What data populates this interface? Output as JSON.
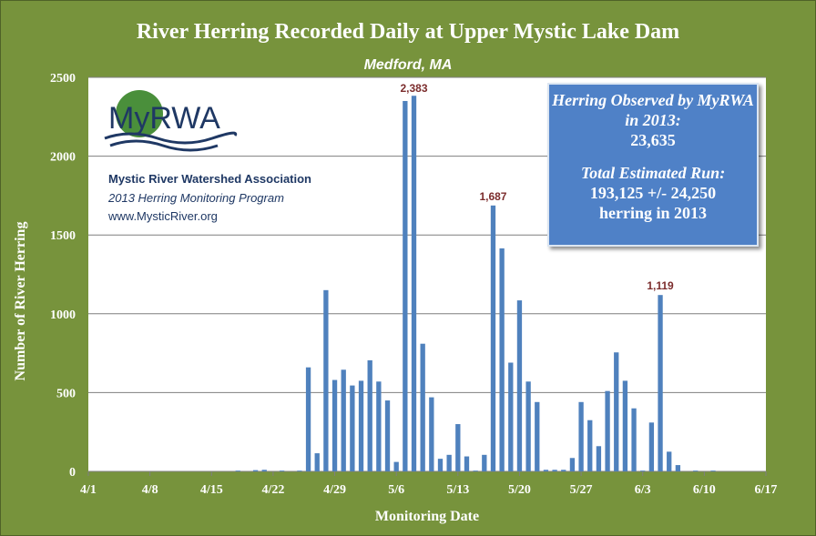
{
  "chart_data": {
    "type": "bar",
    "title": "River Herring Recorded Daily at Upper Mystic Lake Dam",
    "subtitle": "Medford, MA",
    "xlabel": "Monitoring Date",
    "ylabel": "Number of River Herring",
    "ylim": [
      0,
      2500
    ],
    "yticks": [
      "0",
      "500",
      "1000",
      "1500",
      "2000",
      "2500"
    ],
    "xticks": [
      "4/1",
      "4/8",
      "4/15",
      "4/22",
      "4/29",
      "5/6",
      "5/13",
      "5/20",
      "5/27",
      "6/3",
      "6/10",
      "6/17"
    ],
    "grid": "horizontal",
    "bar_color": "#4f81bd",
    "x_start": "4/1",
    "x_end": "6/17",
    "points": [
      {
        "date": "4/18",
        "value": 5
      },
      {
        "date": "4/20",
        "value": 8
      },
      {
        "date": "4/21",
        "value": 10
      },
      {
        "date": "4/23",
        "value": 5
      },
      {
        "date": "4/25",
        "value": 5
      },
      {
        "date": "4/26",
        "value": 660
      },
      {
        "date": "4/27",
        "value": 115
      },
      {
        "date": "4/28",
        "value": 1150
      },
      {
        "date": "4/29",
        "value": 580
      },
      {
        "date": "4/30",
        "value": 645
      },
      {
        "date": "5/1",
        "value": 545
      },
      {
        "date": "5/2",
        "value": 575
      },
      {
        "date": "5/3",
        "value": 705
      },
      {
        "date": "5/4",
        "value": 570
      },
      {
        "date": "5/5",
        "value": 450
      },
      {
        "date": "5/6",
        "value": 60
      },
      {
        "date": "5/7",
        "value": 2350
      },
      {
        "date": "5/8",
        "value": 2383
      },
      {
        "date": "5/9",
        "value": 810
      },
      {
        "date": "5/10",
        "value": 470
      },
      {
        "date": "5/11",
        "value": 80
      },
      {
        "date": "5/12",
        "value": 105
      },
      {
        "date": "5/13",
        "value": 300
      },
      {
        "date": "5/14",
        "value": 95
      },
      {
        "date": "5/15",
        "value": 5
      },
      {
        "date": "5/16",
        "value": 105
      },
      {
        "date": "5/17",
        "value": 1687
      },
      {
        "date": "5/18",
        "value": 1415
      },
      {
        "date": "5/19",
        "value": 690
      },
      {
        "date": "5/20",
        "value": 1085
      },
      {
        "date": "5/21",
        "value": 570
      },
      {
        "date": "5/22",
        "value": 440
      },
      {
        "date": "5/23",
        "value": 10
      },
      {
        "date": "5/24",
        "value": 10
      },
      {
        "date": "5/25",
        "value": 10
      },
      {
        "date": "5/26",
        "value": 85
      },
      {
        "date": "5/27",
        "value": 440
      },
      {
        "date": "5/28",
        "value": 325
      },
      {
        "date": "5/29",
        "value": 160
      },
      {
        "date": "5/30",
        "value": 510
      },
      {
        "date": "5/31",
        "value": 755
      },
      {
        "date": "6/1",
        "value": 575
      },
      {
        "date": "6/2",
        "value": 400
      },
      {
        "date": "6/3",
        "value": 5
      },
      {
        "date": "6/4",
        "value": 310
      },
      {
        "date": "6/5",
        "value": 1119
      },
      {
        "date": "6/6",
        "value": 125
      },
      {
        "date": "6/7",
        "value": 40
      },
      {
        "date": "6/9",
        "value": 5
      },
      {
        "date": "6/11",
        "value": 5
      }
    ],
    "data_labels": [
      {
        "date": "5/8",
        "text": "2,383"
      },
      {
        "date": "5/17",
        "text": "1,687"
      },
      {
        "date": "6/5",
        "text": "1,119"
      }
    ]
  },
  "logo": {
    "text": "MyRWA",
    "color_green": "#3f8a3a",
    "color_blue": "#1f3864"
  },
  "organization": {
    "name": "Mystic River Watershed Association",
    "program": "2013 Herring Monitoring Program",
    "url": "www.MysticRiver.org"
  },
  "info_box": {
    "observed_label": "Herring Observed by MyRWA in 2013:",
    "observed_value": "23,635",
    "estimate_label": "Total Estimated Run:",
    "estimate_value": "193,125 +/- 24,250",
    "estimate_unit": "herring in 2013"
  },
  "colors": {
    "background": "#77933c",
    "plot_area": "#ffffff",
    "bars": "#4f81bd",
    "info_box": "#4f81c7"
  }
}
